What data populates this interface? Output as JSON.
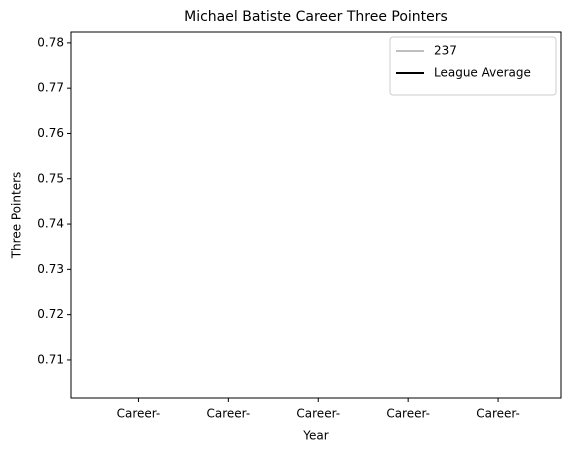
{
  "chart_data": {
    "type": "line",
    "title": "Michael Batiste Career Three Pointers",
    "x_label": "Year",
    "y_label": "Three Pointers",
    "categories": [
      "Career-",
      "Career-",
      "Career-",
      "Career-",
      "Career-"
    ],
    "series": [
      {
        "name": "237",
        "color": "#bfbfbf",
        "values": [
          null,
          null,
          null,
          null,
          null
        ]
      },
      {
        "name": "League Average",
        "color": "#000000",
        "values": [
          null,
          null,
          null,
          null,
          null
        ]
      }
    ],
    "xlim": [
      -0.75,
      4.7
    ],
    "ylim": [
      0.7016,
      0.7824
    ],
    "yticks": [
      0.71,
      0.72,
      0.73,
      0.74,
      0.75,
      0.76,
      0.77,
      0.78
    ],
    "grid": false,
    "legend": "upper right"
  }
}
